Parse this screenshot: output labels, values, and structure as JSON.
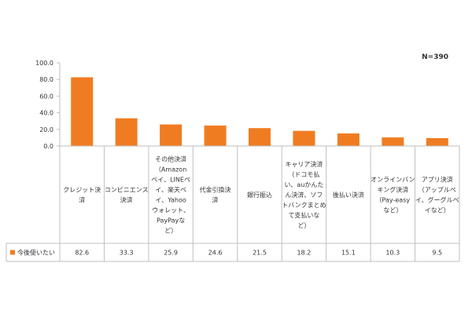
{
  "chart_data": {
    "type": "bar",
    "n_label": "N=390",
    "ylim": [
      0,
      100
    ],
    "yticks": [
      "0.0",
      "20.0",
      "40.0",
      "60.0",
      "80.0",
      "100.0"
    ],
    "gridlines": false,
    "legend_position": "data-table-left",
    "categories": [
      [
        "クレジット決",
        "済"
      ],
      [
        "コンビニエンス",
        "決済"
      ],
      [
        "その他決済",
        "（Amazon",
        "ペイ、LINEペ",
        "イ、楽天ペ",
        "イ、Yahoo",
        "ウォレット、",
        "PayPayな",
        "ど）"
      ],
      [
        "代金引換決",
        "済"
      ],
      [
        "銀行振込"
      ],
      [
        "キャリア決済",
        "（ドコモ払",
        "い、auかんた",
        "ん決済、ソフ",
        "トバンクまとめ",
        "て支払いな",
        "ど）"
      ],
      [
        "後払い決済"
      ],
      [
        "オンラインバン",
        "キング決済",
        "（Pay-easy",
        "など）"
      ],
      [
        "アプリ決済",
        "（アップルペ",
        "イ、グーグルペ",
        "イなど）"
      ]
    ],
    "series": [
      {
        "name": "今後使いたい",
        "values": [
          82.6,
          33.3,
          25.9,
          24.6,
          21.5,
          18.2,
          15.1,
          10.3,
          9.5
        ]
      }
    ],
    "value_labels": [
      "82.6",
      "33.3",
      "25.9",
      "24.6",
      "21.5",
      "18.2",
      "15.1",
      "10.3",
      "9.5"
    ]
  },
  "colors": {
    "bar": "#f07c22",
    "axis": "#bfbfbf",
    "text": "#333333"
  }
}
